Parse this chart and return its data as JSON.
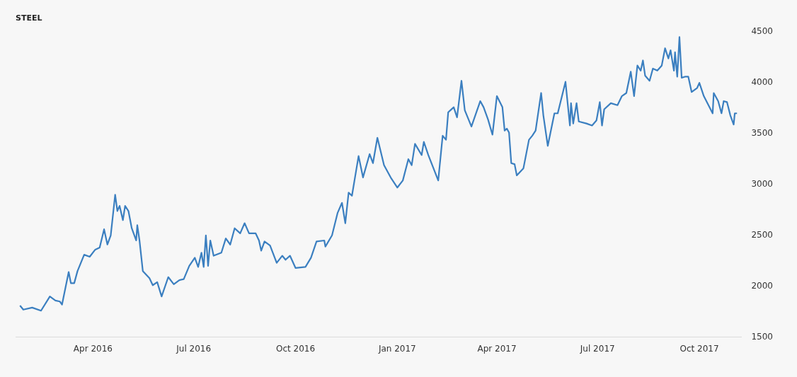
{
  "chart_data": {
    "type": "line",
    "title": "STEEL",
    "x": [
      "2016-01-26",
      "2016-01-29",
      "2016-02-06",
      "2016-02-14",
      "2016-02-22",
      "2016-02-27",
      "2016-03-02",
      "2016-03-04",
      "2016-03-10",
      "2016-03-12",
      "2016-03-15",
      "2016-03-18",
      "2016-03-24",
      "2016-03-29",
      "2016-04-03",
      "2016-04-07",
      "2016-04-11",
      "2016-04-14",
      "2016-04-17",
      "2016-04-21",
      "2016-04-23",
      "2016-04-25",
      "2016-04-28",
      "2016-04-30",
      "2016-05-03",
      "2016-05-06",
      "2016-05-10",
      "2016-05-11",
      "2016-05-13",
      "2016-05-16",
      "2016-05-22",
      "2016-05-25",
      "2016-05-29",
      "2016-06-02",
      "2016-06-08",
      "2016-06-13",
      "2016-06-18",
      "2016-06-22",
      "2016-06-27",
      "2016-07-02",
      "2016-07-05",
      "2016-07-08",
      "2016-07-10",
      "2016-07-12",
      "2016-07-14",
      "2016-07-16",
      "2016-07-19",
      "2016-07-26",
      "2016-07-30",
      "2016-08-03",
      "2016-08-07",
      "2016-08-12",
      "2016-08-16",
      "2016-08-20",
      "2016-08-24",
      "2016-08-26",
      "2016-08-29",
      "2016-08-31",
      "2016-09-03",
      "2016-09-08",
      "2016-09-14",
      "2016-09-19",
      "2016-09-22",
      "2016-09-26",
      "2016-10-01",
      "2016-10-10",
      "2016-10-15",
      "2016-10-20",
      "2016-10-27",
      "2016-10-28",
      "2016-11-03",
      "2016-11-08",
      "2016-11-12",
      "2016-11-15",
      "2016-11-18",
      "2016-11-21",
      "2016-11-27",
      "2016-12-01",
      "2016-12-07",
      "2016-12-10",
      "2016-12-14",
      "2016-12-20",
      "2016-12-26",
      "2017-01-01",
      "2017-01-06",
      "2017-01-11",
      "2017-01-14",
      "2017-01-17",
      "2017-01-23",
      "2017-01-25",
      "2017-01-29",
      "2017-02-07",
      "2017-02-11",
      "2017-02-14",
      "2017-02-16",
      "2017-02-18",
      "2017-02-21",
      "2017-02-24",
      "2017-02-28",
      "2017-03-03",
      "2017-03-09",
      "2017-03-17",
      "2017-03-20",
      "2017-03-24",
      "2017-03-28",
      "2017-04-01",
      "2017-04-06",
      "2017-04-08",
      "2017-04-10",
      "2017-04-12",
      "2017-04-14",
      "2017-04-17",
      "2017-04-19",
      "2017-04-25",
      "2017-04-30",
      "2017-05-03",
      "2017-05-06",
      "2017-05-11",
      "2017-05-13",
      "2017-05-17",
      "2017-05-23",
      "2017-05-26",
      "2017-06-02",
      "2017-06-06",
      "2017-06-07",
      "2017-06-09",
      "2017-06-12",
      "2017-06-14",
      "2017-06-21",
      "2017-06-26",
      "2017-06-30",
      "2017-07-03",
      "2017-07-05",
      "2017-07-07",
      "2017-07-13",
      "2017-07-19",
      "2017-07-23",
      "2017-07-27",
      "2017-07-31",
      "2017-08-03",
      "2017-08-06",
      "2017-08-09",
      "2017-08-11",
      "2017-08-13",
      "2017-08-17",
      "2017-08-20",
      "2017-08-24",
      "2017-08-28",
      "2017-08-31",
      "2017-09-03",
      "2017-09-05",
      "2017-09-08",
      "2017-09-09",
      "2017-09-11",
      "2017-09-13",
      "2017-09-15",
      "2017-09-18",
      "2017-09-21",
      "2017-09-24",
      "2017-09-29",
      "2017-10-01",
      "2017-10-05",
      "2017-10-13",
      "2017-10-14",
      "2017-10-18",
      "2017-10-21",
      "2017-10-23",
      "2017-10-26",
      "2017-10-29",
      "2017-11-01",
      "2017-11-02",
      "2017-11-04"
    ],
    "series": [
      {
        "color": "#3b7fc0",
        "values": [
          1810,
          1770,
          1790,
          1760,
          1900,
          1860,
          1850,
          1820,
          2140,
          2030,
          2030,
          2150,
          2310,
          2290,
          2360,
          2380,
          2560,
          2410,
          2500,
          2900,
          2740,
          2790,
          2650,
          2790,
          2740,
          2570,
          2450,
          2600,
          2450,
          2150,
          2080,
          2010,
          2040,
          1900,
          2090,
          2020,
          2060,
          2070,
          2200,
          2280,
          2190,
          2330,
          2190,
          2500,
          2200,
          2450,
          2300,
          2330,
          2470,
          2410,
          2570,
          2520,
          2620,
          2520,
          2520,
          2520,
          2450,
          2350,
          2440,
          2400,
          2230,
          2300,
          2260,
          2300,
          2180,
          2190,
          2280,
          2440,
          2450,
          2390,
          2500,
          2720,
          2820,
          2620,
          2920,
          2890,
          3280,
          3070,
          3300,
          3210,
          3460,
          3190,
          3070,
          2970,
          3040,
          3250,
          3190,
          3400,
          3290,
          3420,
          3290,
          3040,
          3480,
          3440,
          3710,
          3730,
          3760,
          3660,
          4020,
          3730,
          3570,
          3820,
          3760,
          3640,
          3490,
          3870,
          3760,
          3530,
          3550,
          3510,
          3210,
          3200,
          3090,
          3160,
          3440,
          3480,
          3530,
          3900,
          3680,
          3380,
          3700,
          3700,
          4010,
          3580,
          3800,
          3600,
          3800,
          3620,
          3600,
          3580,
          3630,
          3810,
          3580,
          3740,
          3800,
          3780,
          3870,
          3900,
          4110,
          3870,
          4170,
          4120,
          4220,
          4070,
          4020,
          4140,
          4120,
          4170,
          4340,
          4240,
          4320,
          4120,
          4300,
          4060,
          4450,
          4050,
          4060,
          4060,
          3910,
          3950,
          4000,
          3870,
          3700,
          3900,
          3820,
          3700,
          3820,
          3810,
          3680,
          3590,
          3700,
          3700
        ]
      }
    ],
    "xlim": [
      "2016-01-22",
      "2017-11-08"
    ],
    "xticks": [
      {
        "value": "2016-04-01",
        "label": "Apr 2016"
      },
      {
        "value": "2016-07-01",
        "label": "Jul 2016"
      },
      {
        "value": "2016-10-01",
        "label": "Oct 2016"
      },
      {
        "value": "2017-01-01",
        "label": "Jan 2017"
      },
      {
        "value": "2017-04-01",
        "label": "Apr 2017"
      },
      {
        "value": "2017-07-01",
        "label": "Jul 2017"
      },
      {
        "value": "2017-10-01",
        "label": "Oct 2017"
      }
    ],
    "ylim": [
      1500,
      4500
    ],
    "yticks": [
      1500,
      2000,
      2500,
      3000,
      3500,
      4000,
      4500
    ],
    "grid": false,
    "legend": false,
    "marker": "none",
    "line_style": "solid"
  }
}
